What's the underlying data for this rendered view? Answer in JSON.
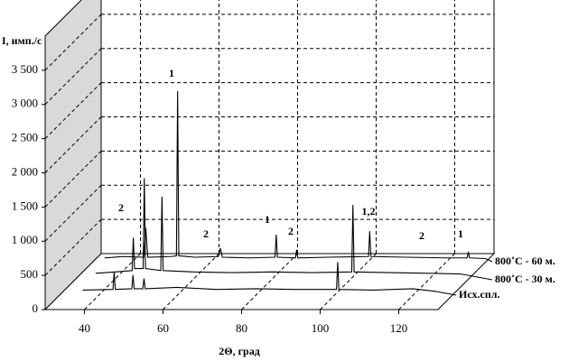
{
  "chart_data": {
    "type": "waterfall-line",
    "y_label": "I, имп./с",
    "x_label": "2Θ, град",
    "xlim": [
      30,
      130
    ],
    "xticks": [
      40,
      60,
      80,
      100,
      120
    ],
    "ylim": [
      0,
      4000
    ],
    "yticks": [
      0,
      500,
      {
        "value": 1000,
        "label": "1 000"
      },
      {
        "value": 1500,
        "label": "1 500"
      },
      {
        "value": 2000,
        "label": "2 000"
      },
      {
        "value": 2500,
        "label": "2 500"
      },
      {
        "value": 3000,
        "label": "3 000"
      },
      {
        "value": 3500,
        "label": "3 500"
      }
    ],
    "grid": true,
    "series": [
      {
        "name": "Исх.спл.",
        "color": "#000000",
        "x": [
          36,
          43.7,
          44,
          44.3,
          48.5,
          48.8,
          49.1,
          51.3,
          51.6,
          51.9,
          60,
          70,
          80,
          90,
          100.6,
          100.9,
          101.2,
          110,
          120,
          126
        ],
        "values": [
          80,
          90,
          350,
          90,
          100,
          300,
          100,
          100,
          250,
          100,
          120,
          90,
          100,
          90,
          90,
          490,
          90,
          80,
          100,
          60
        ]
      },
      {
        "name": "800˚С - 30 м.",
        "color": "#000000",
        "x": [
          35,
          40,
          44.3,
          44.6,
          44.9,
          47.1,
          47.4,
          47.7,
          51.6,
          51.9,
          52.2,
          60,
          70,
          80,
          90,
          100.2,
          100.5,
          100.8,
          110,
          120,
          128
        ],
        "values": [
          80,
          100,
          120,
          600,
          150,
          150,
          1470,
          150,
          120,
          1200,
          120,
          100,
          90,
          100,
          90,
          100,
          1080,
          100,
          90,
          80,
          70
        ]
      },
      {
        "name": "800˚С - 60 м.",
        "color": "#000000",
        "x": [
          33,
          38,
          43,
          43.5,
          44,
          50,
          51.3,
          51.6,
          51.9,
          56,
          62,
          62.5,
          63,
          70,
          76.4,
          76.7,
          77,
          81.6,
          81.9,
          82.2,
          90,
          100.2,
          100.5,
          100.8,
          110,
          120,
          125.3,
          125.6,
          125.9,
          130
        ],
        "values": [
          60,
          80,
          70,
          500,
          70,
          80,
          90,
          2500,
          90,
          70,
          80,
          200,
          70,
          60,
          70,
          400,
          70,
          60,
          180,
          60,
          70,
          80,
          450,
          80,
          70,
          60,
          60,
          150,
          60,
          50
        ]
      }
    ],
    "annotations": [
      "1",
      "2",
      "2",
      "1",
      "2",
      "1,2",
      "2",
      "1"
    ]
  }
}
